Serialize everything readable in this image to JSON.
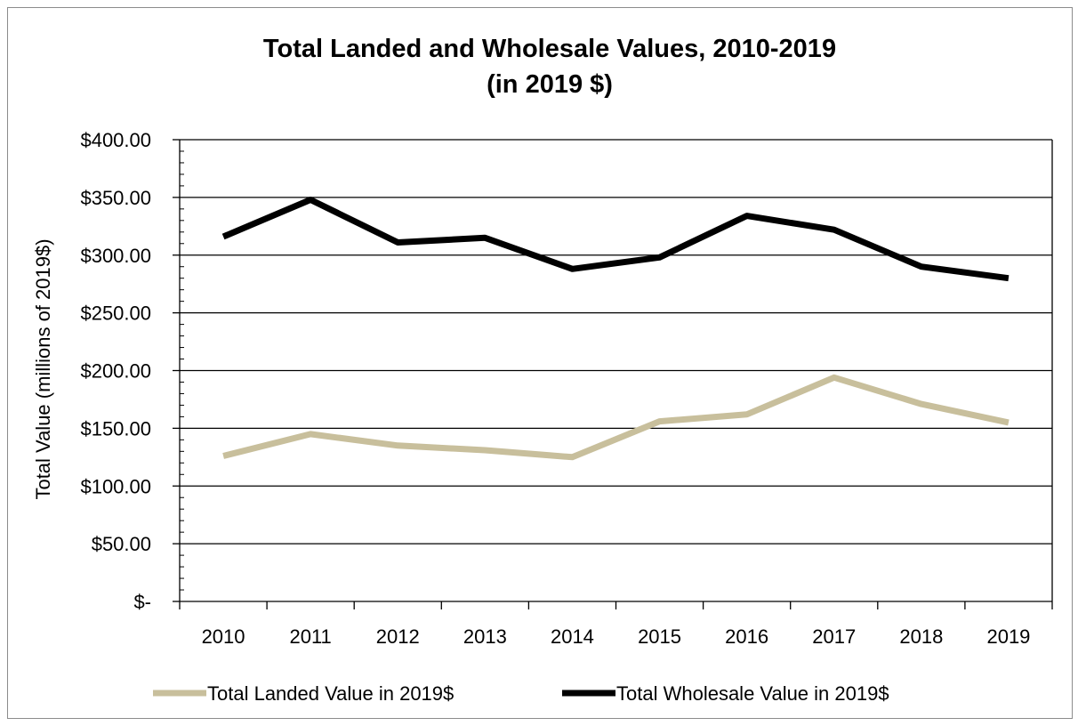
{
  "chart_data": {
    "type": "line",
    "title": "Total Landed and Wholesale Values, 2010-2019",
    "subtitle": "(in 2019 $)",
    "ylabel": "Total Value (millions of 2019$)",
    "xlabel": "",
    "ylim": [
      0,
      400
    ],
    "y_tick_values": [
      0,
      50,
      100,
      150,
      200,
      250,
      300,
      350,
      400
    ],
    "y_tick_labels": [
      "$-",
      "$50.00",
      "$100.00",
      "$150.00",
      "$200.00",
      "$250.00",
      "$300.00",
      "$350.00",
      "$400.00"
    ],
    "categories": [
      "2010",
      "2011",
      "2012",
      "2013",
      "2014",
      "2015",
      "2016",
      "2017",
      "2018",
      "2019"
    ],
    "grid": "horizontal",
    "legend_position": "bottom",
    "series": [
      {
        "name": "Total Landed Value in 2019$",
        "color": "#c8bf9c",
        "values": [
          126,
          145,
          135,
          131,
          125,
          156,
          162,
          194,
          171,
          155
        ]
      },
      {
        "name": "Total Wholesale Value in 2019$",
        "color": "#000000",
        "values": [
          316,
          348,
          311,
          315,
          288,
          298,
          334,
          322,
          290,
          280
        ]
      }
    ]
  }
}
